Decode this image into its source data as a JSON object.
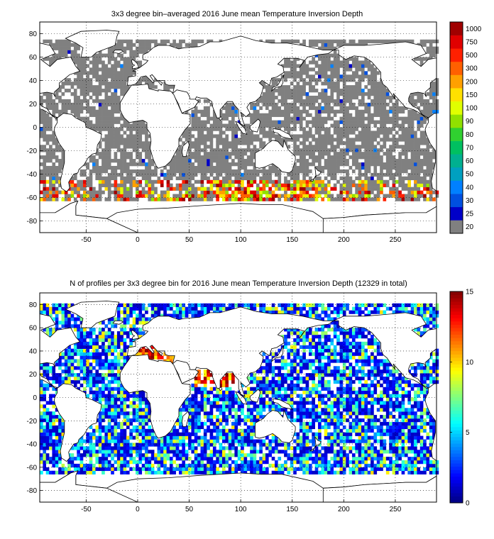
{
  "chart_data": [
    {
      "type": "heatmap",
      "title": "3x3 degree bin–averaged 2016 June mean Temperature Inversion Depth",
      "xlabel": "",
      "ylabel": "",
      "xlim": [
        -95,
        290
      ],
      "ylim": [
        -90,
        90
      ],
      "xticks": [
        -50,
        0,
        50,
        100,
        150,
        200,
        250
      ],
      "yticks": [
        -80,
        -60,
        -40,
        -20,
        0,
        20,
        40,
        60,
        80
      ],
      "grid": true,
      "bin_size_deg": 3,
      "colorbar": {
        "scale": "categorical",
        "labels": [
          "20",
          "25",
          "30",
          "40",
          "50",
          "60",
          "70",
          "80",
          "90",
          "100",
          "150",
          "200",
          "300",
          "500",
          "750",
          "1000"
        ],
        "colors": [
          "#808080",
          "#0000c8",
          "#0050e0",
          "#0080ff",
          "#00a0c0",
          "#00b090",
          "#00c060",
          "#30d030",
          "#90e000",
          "#e0ff00",
          "#ffe000",
          "#ffa000",
          "#ff6000",
          "#ff2000",
          "#e00000",
          "#a00000"
        ]
      },
      "description_of_field": "Most ocean bins between about 75N and 55S hold the lowest class (20, grey). Bins with larger values (60 to 1000) cluster around 45S to 62S, densest between 80 and 170 E."
    },
    {
      "type": "heatmap",
      "title": "N of profiles per 3x3 degree bin for 2016 June mean Temperature Inversion Depth  (12329 in total)",
      "total_profiles": 12329,
      "xlabel": "",
      "ylabel": "",
      "xlim": [
        -95,
        290
      ],
      "ylim": [
        -90,
        90
      ],
      "xticks": [
        -50,
        0,
        50,
        100,
        150,
        200,
        250
      ],
      "yticks": [
        -80,
        -60,
        -40,
        -20,
        0,
        20,
        40,
        60,
        80
      ],
      "grid": true,
      "bin_size_deg": 3,
      "colorbar": {
        "scale": "continuous",
        "colormap": "jet",
        "range": [
          0,
          15
        ],
        "ticks": [
          0,
          5,
          10,
          15
        ]
      },
      "description_of_field": "Ocean bins mostly hold 1–5 profiles (blue). Hot spots of 10–15 profiles lie in the Mediterranean (~35N, 0–40E), the Arabian Sea and the Bay of Bengal (~15N, 60–90E), and scattered bins across the Pacific."
    }
  ]
}
